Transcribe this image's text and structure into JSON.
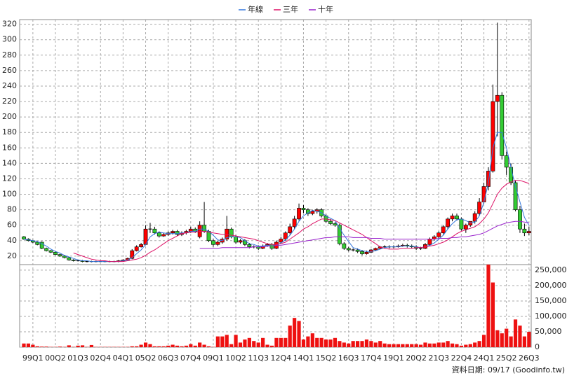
{
  "chart_data": {
    "type": "candlestick",
    "legend": "top",
    "grid": true,
    "footnote": "資料日期: 09/17 (Goodinfo.tw)",
    "up_color": "#ff0000",
    "down_color": "#33cc33",
    "categories": [
      null,
      null,
      "99Q1",
      null,
      null,
      null,
      null,
      "00Q2",
      null,
      null,
      null,
      null,
      "01Q3",
      null,
      null,
      null,
      null,
      "02Q4",
      null,
      null,
      null,
      null,
      "04Q1",
      null,
      null,
      null,
      null,
      "05Q2",
      null,
      null,
      null,
      null,
      "06Q3",
      null,
      null,
      null,
      null,
      "07Q4",
      null,
      null,
      null,
      null,
      "09Q1",
      null,
      null,
      null,
      null,
      "10Q2",
      null,
      null,
      null,
      null,
      "11Q3",
      null,
      null,
      null,
      null,
      "12Q4",
      null,
      null,
      null,
      null,
      "14Q1",
      null,
      null,
      null,
      null,
      "15Q2",
      null,
      null,
      null,
      null,
      "16Q3",
      null,
      null,
      null,
      null,
      "17Q4",
      null,
      null,
      null,
      null,
      "19Q1",
      null,
      null,
      null,
      null,
      "20Q2",
      null,
      null,
      null,
      null,
      "21Q3",
      null,
      null,
      null,
      null,
      "22Q4",
      null,
      null,
      null,
      null,
      "24Q1",
      null,
      null,
      null,
      null,
      "25Q2",
      null,
      null,
      null,
      null,
      "26Q3"
    ],
    "open": [
      45,
      42,
      40,
      38,
      38,
      30,
      27,
      25,
      22,
      20,
      18,
      15,
      14,
      14,
      13,
      13,
      13,
      13,
      13,
      13,
      13,
      13,
      14,
      15,
      17,
      27,
      32,
      35,
      55,
      55,
      50,
      46,
      48,
      50,
      52,
      48,
      50,
      52,
      55,
      45,
      60,
      52,
      40,
      35,
      38,
      42,
      55,
      45,
      38,
      40,
      35,
      32,
      32,
      30,
      33,
      35,
      30,
      38,
      42,
      50,
      58,
      68,
      82,
      80,
      75,
      78,
      80,
      72,
      65,
      62,
      60,
      36,
      30,
      28,
      28,
      26,
      23,
      25,
      28,
      30,
      32,
      32,
      32,
      32,
      33,
      34,
      33,
      32,
      30,
      30,
      35,
      42,
      45,
      50,
      58,
      68,
      72,
      68,
      55,
      60,
      65,
      75,
      90,
      110,
      130,
      220,
      228,
      150,
      135,
      115,
      80,
      55,
      50
    ],
    "high": [
      46,
      43,
      41,
      39,
      39,
      31,
      28,
      26,
      23,
      21,
      19,
      16,
      15,
      15,
      14,
      14,
      14,
      14,
      14,
      14,
      14,
      15,
      16,
      18,
      29,
      34,
      37,
      60,
      63,
      58,
      52,
      50,
      52,
      54,
      54,
      52,
      54,
      58,
      57,
      65,
      90,
      54,
      42,
      40,
      44,
      72,
      57,
      47,
      42,
      42,
      37,
      34,
      34,
      35,
      37,
      37,
      40,
      45,
      52,
      62,
      72,
      88,
      86,
      82,
      80,
      82,
      82,
      74,
      68,
      64,
      62,
      38,
      32,
      30,
      30,
      28,
      27,
      29,
      31,
      33,
      34,
      34,
      34,
      35,
      36,
      36,
      35,
      34,
      32,
      37,
      44,
      47,
      52,
      60,
      70,
      75,
      75,
      70,
      62,
      64,
      78,
      95,
      115,
      135,
      242,
      322,
      232,
      155,
      140,
      118,
      85,
      62,
      58
    ],
    "low": [
      41,
      39,
      37,
      34,
      29,
      26,
      24,
      21,
      19,
      17,
      14,
      13,
      13,
      12,
      12,
      12,
      12,
      12,
      12,
      12,
      12,
      12,
      13,
      14,
      16,
      26,
      31,
      34,
      50,
      48,
      44,
      45,
      46,
      48,
      46,
      46,
      48,
      50,
      50,
      43,
      50,
      38,
      32,
      33,
      36,
      40,
      43,
      36,
      36,
      33,
      30,
      30,
      28,
      29,
      32,
      28,
      29,
      36,
      40,
      48,
      55,
      66,
      76,
      72,
      73,
      75,
      70,
      63,
      60,
      58,
      34,
      28,
      26,
      26,
      24,
      21,
      22,
      24,
      27,
      29,
      30,
      30,
      30,
      31,
      32,
      31,
      30,
      28,
      28,
      29,
      33,
      40,
      43,
      48,
      55,
      65,
      66,
      53,
      50,
      58,
      62,
      72,
      88,
      105,
      128,
      175,
      145,
      125,
      112,
      78,
      50,
      46,
      47
    ],
    "close": [
      42,
      40,
      38,
      35,
      30,
      27,
      25,
      22,
      20,
      18,
      15,
      14,
      14,
      13,
      13,
      13,
      13,
      13,
      13,
      13,
      13,
      14,
      15,
      17,
      27,
      32,
      35,
      55,
      55,
      50,
      46,
      48,
      50,
      52,
      48,
      50,
      52,
      55,
      52,
      60,
      52,
      40,
      35,
      38,
      42,
      55,
      45,
      38,
      40,
      35,
      32,
      32,
      30,
      33,
      35,
      30,
      38,
      42,
      50,
      58,
      68,
      82,
      80,
      75,
      78,
      80,
      72,
      65,
      62,
      60,
      36,
      30,
      28,
      28,
      26,
      23,
      25,
      28,
      30,
      32,
      32,
      32,
      32,
      33,
      34,
      33,
      32,
      30,
      30,
      35,
      42,
      45,
      50,
      58,
      68,
      72,
      68,
      55,
      60,
      65,
      75,
      90,
      110,
      130,
      220,
      228,
      150,
      135,
      115,
      80,
      55,
      50,
      52
    ],
    "ylim": [
      9,
      326
    ],
    "yticks": [
      20,
      40,
      60,
      80,
      100,
      120,
      140,
      160,
      180,
      200,
      220,
      240,
      260,
      280,
      300,
      320
    ],
    "series": [
      {
        "name": "年線",
        "color": "#3377dd",
        "values": [
          42,
          41,
          40,
          39,
          36,
          33,
          29,
          26,
          24,
          21,
          19,
          17,
          15,
          14,
          14,
          13,
          13,
          13,
          13,
          13,
          13,
          13,
          14,
          15,
          18,
          23,
          28,
          35,
          45,
          49,
          51,
          50,
          49,
          49,
          49,
          50,
          50,
          52,
          52,
          55,
          55,
          52,
          47,
          41,
          40,
          44,
          45,
          45,
          44,
          40,
          36,
          35,
          33,
          33,
          34,
          33,
          34,
          37,
          41,
          47,
          55,
          65,
          72,
          76,
          79,
          78,
          76,
          72,
          69,
          66,
          56,
          47,
          39,
          31,
          29,
          27,
          26,
          26,
          27,
          29,
          31,
          32,
          32,
          32,
          33,
          33,
          33,
          32,
          31,
          32,
          34,
          37,
          42,
          47,
          55,
          62,
          67,
          68,
          66,
          63,
          64,
          72,
          90,
          115,
          160,
          180,
          180,
          160,
          135,
          110,
          90,
          70,
          60
        ]
      },
      {
        "name": "三年",
        "color": "#dd1166",
        "values": [
          null,
          null,
          null,
          null,
          null,
          null,
          null,
          null,
          null,
          null,
          null,
          24,
          22,
          20,
          18,
          16,
          15,
          14,
          14,
          13,
          13,
          13,
          13,
          14,
          15,
          16,
          18,
          21,
          25,
          28,
          32,
          36,
          40,
          43,
          46,
          49,
          50,
          51,
          51,
          52,
          52,
          51,
          50,
          49,
          48,
          48,
          47,
          46,
          45,
          44,
          43,
          42,
          40,
          38,
          36,
          35,
          35,
          36,
          38,
          42,
          46,
          50,
          55,
          58,
          62,
          65,
          68,
          68,
          67,
          66,
          63,
          60,
          57,
          54,
          51,
          48,
          44,
          40,
          36,
          32,
          30,
          29,
          29,
          29,
          30,
          30,
          30,
          31,
          31,
          32,
          33,
          34,
          36,
          38,
          41,
          45,
          49,
          52,
          54,
          56,
          58,
          62,
          68,
          76,
          88,
          100,
          108,
          113,
          116,
          118,
          118,
          116,
          114
        ]
      },
      {
        "name": "十年",
        "color": "#9922cc",
        "values": [
          null,
          null,
          null,
          null,
          null,
          null,
          null,
          null,
          null,
          null,
          null,
          null,
          null,
          null,
          null,
          null,
          null,
          null,
          null,
          null,
          null,
          null,
          null,
          null,
          null,
          null,
          null,
          null,
          null,
          null,
          null,
          null,
          null,
          null,
          null,
          null,
          null,
          null,
          null,
          30,
          30,
          30,
          30,
          30,
          31,
          31,
          31,
          31,
          31,
          31,
          31,
          32,
          32,
          32,
          33,
          33,
          34,
          34,
          35,
          36,
          37,
          38,
          39,
          40,
          41,
          42,
          43,
          44,
          44,
          45,
          45,
          45,
          45,
          44,
          44,
          44,
          44,
          43,
          43,
          43,
          42,
          42,
          42,
          42,
          42,
          42,
          42,
          42,
          42,
          42,
          42,
          42,
          43,
          43,
          43,
          44,
          44,
          45,
          45,
          46,
          47,
          48,
          50,
          53,
          56,
          59,
          61,
          63,
          64,
          65,
          65,
          64,
          63
        ]
      }
    ],
    "volume": {
      "color": "#ee1111",
      "ylim": [
        0,
        268000
      ],
      "yticks": [
        0,
        {
          "value": 50000,
          "label": "50,000"
        },
        {
          "value": 100000,
          "label": "100,000"
        },
        {
          "value": 150000,
          "label": "150,000"
        },
        {
          "value": 200000,
          "label": "200,000"
        },
        {
          "value": 250000,
          "label": "250,000"
        }
      ],
      "values": [
        12000,
        12000,
        8000,
        3000,
        2000,
        2000,
        1000,
        1000,
        2000,
        1000,
        6000,
        1000,
        5000,
        6000,
        1000,
        7000,
        1000,
        1000,
        1000,
        1000,
        1000,
        1000,
        1000,
        1000,
        3000,
        3000,
        8000,
        15000,
        10000,
        3000,
        3000,
        3000,
        5000,
        8000,
        5000,
        3000,
        5000,
        10000,
        5000,
        15000,
        8000,
        3000,
        1000,
        35000,
        35000,
        40000,
        10000,
        40000,
        15000,
        25000,
        30000,
        20000,
        15000,
        30000,
        8000,
        5000,
        30000,
        30000,
        30000,
        70000,
        95000,
        85000,
        25000,
        35000,
        45000,
        30000,
        30000,
        25000,
        25000,
        30000,
        20000,
        15000,
        12000,
        20000,
        20000,
        20000,
        25000,
        20000,
        15000,
        20000,
        12000,
        10000,
        10000,
        10000,
        10000,
        10000,
        10000,
        10000,
        8000,
        15000,
        12000,
        12000,
        15000,
        15000,
        20000,
        12000,
        10000,
        5000,
        8000,
        10000,
        15000,
        20000,
        40000,
        280000,
        210000,
        55000,
        45000,
        60000,
        35000,
        90000,
        70000,
        35000,
        50000
      ]
    }
  }
}
